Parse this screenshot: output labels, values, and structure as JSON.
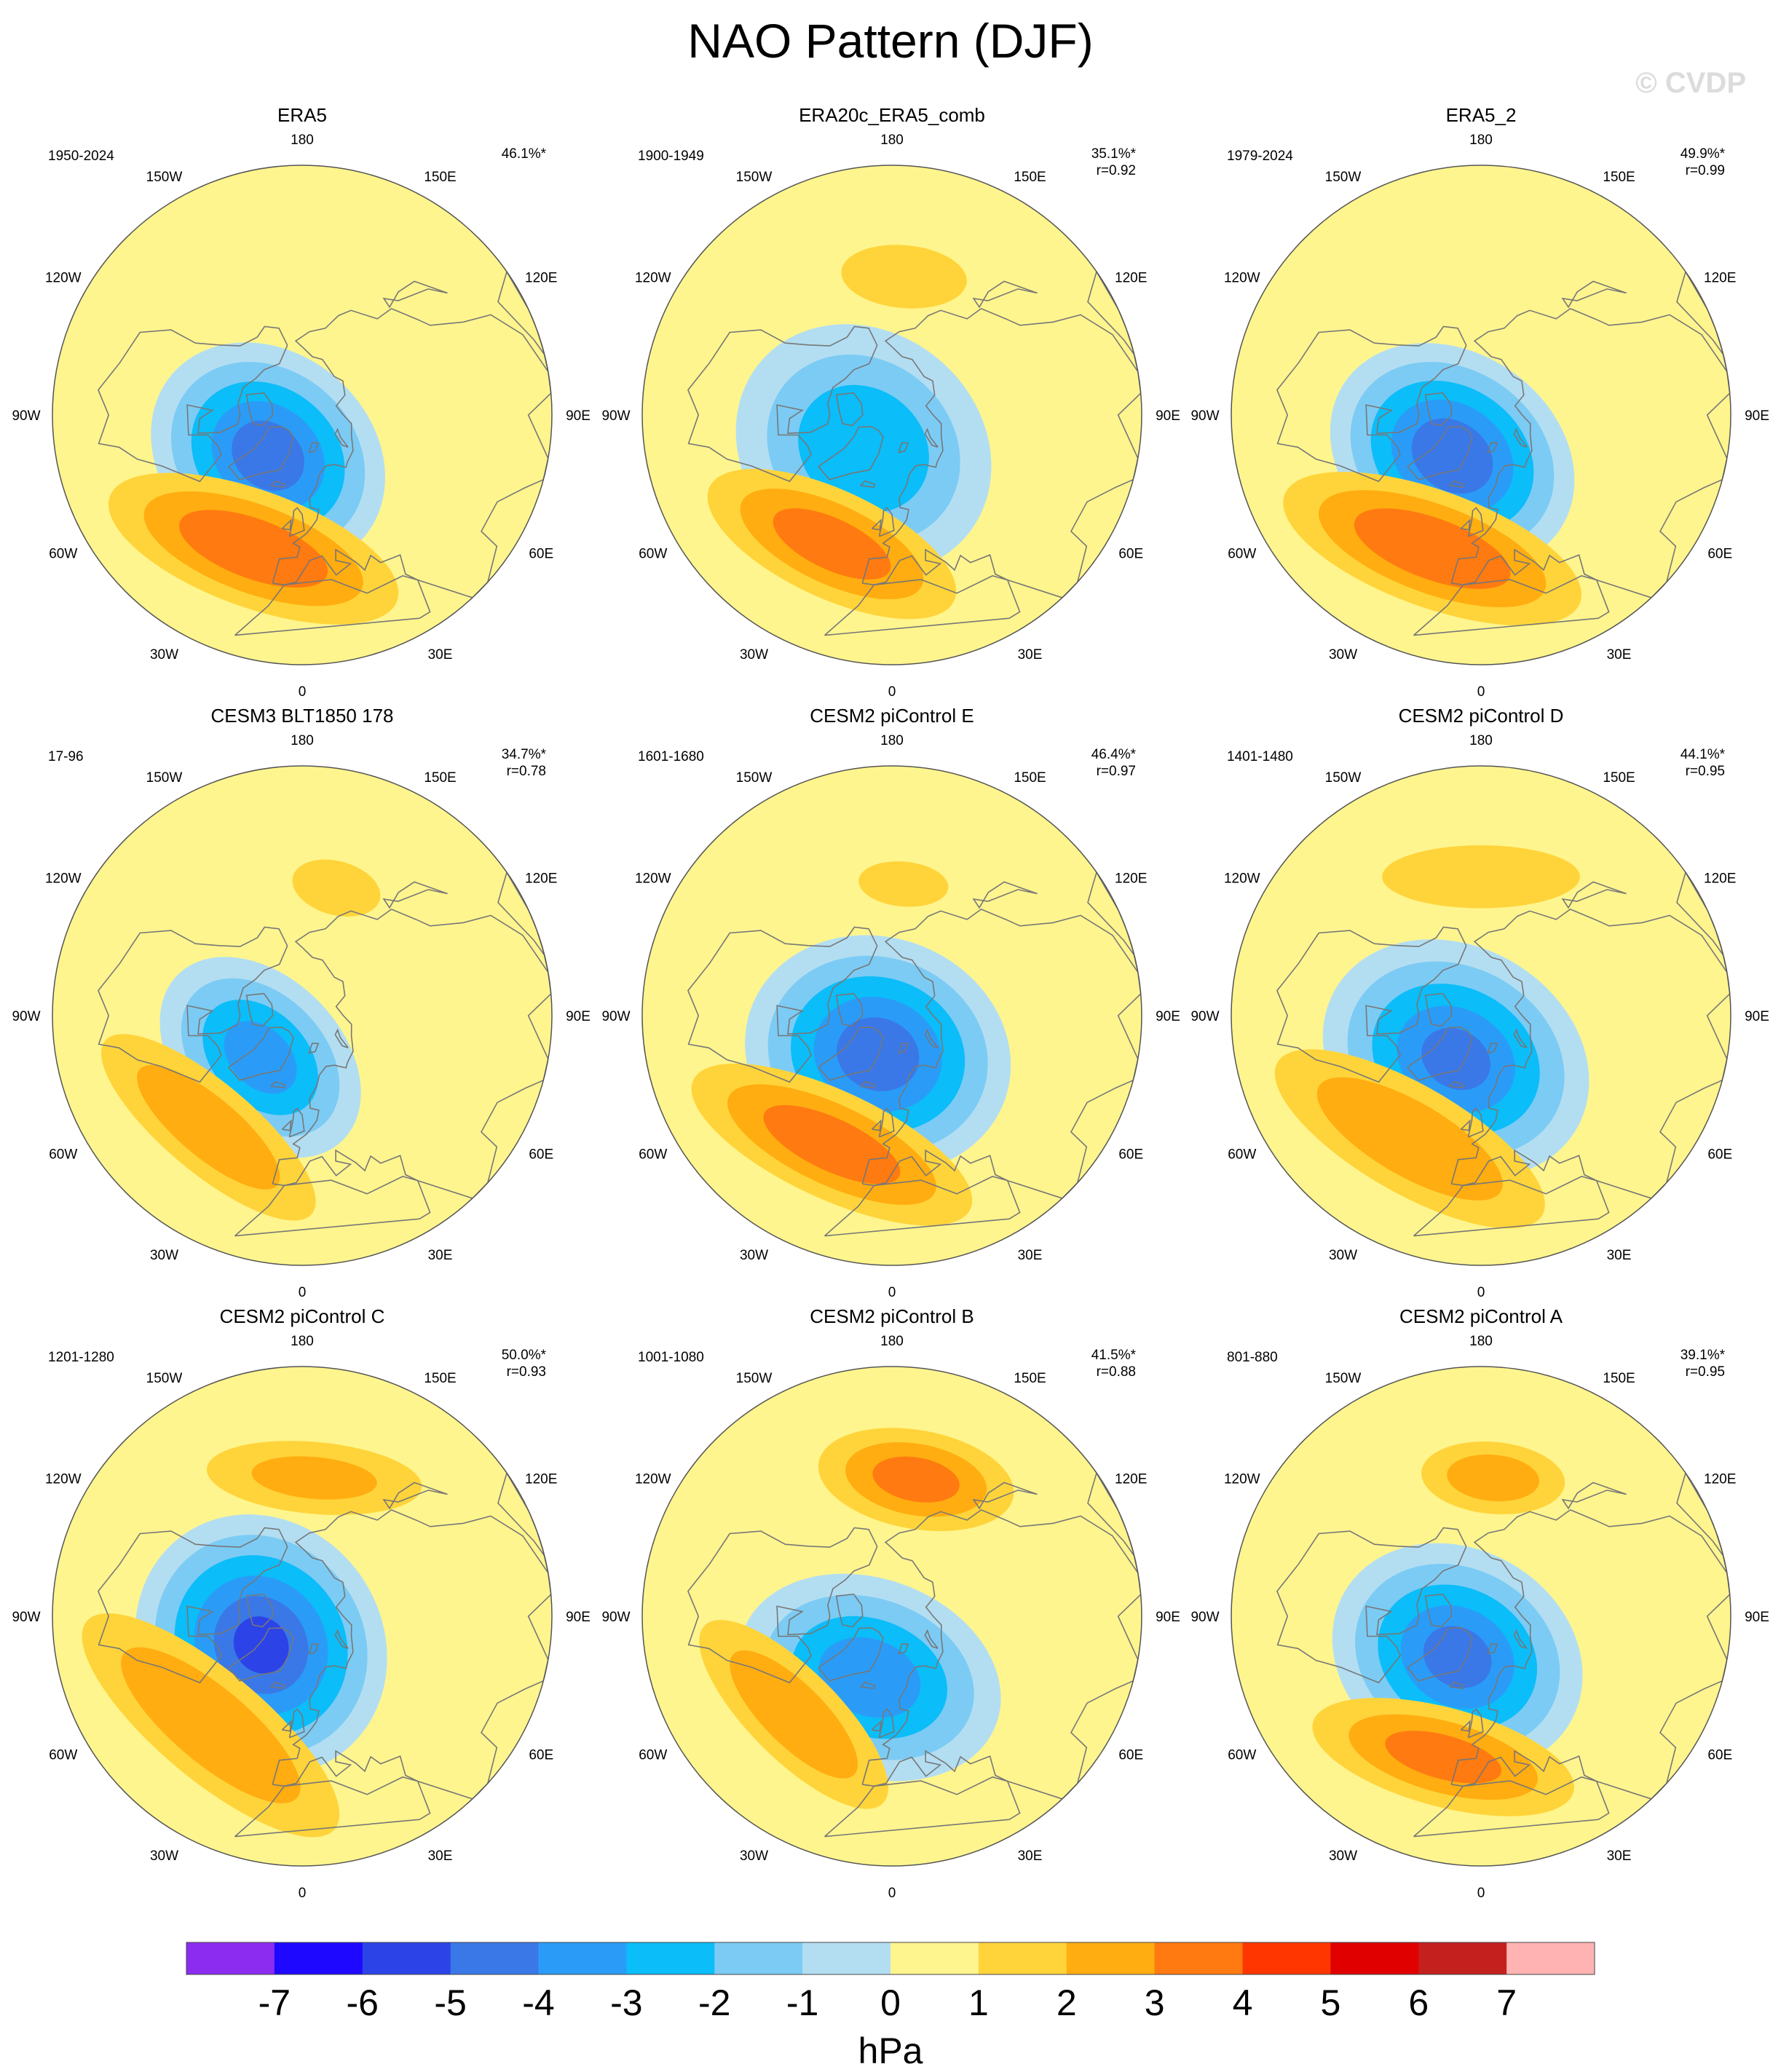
{
  "title": "NAO Pattern (DJF)",
  "watermark": "© CVDP",
  "colors": {
    "levels": [
      "#8c2cf0",
      "#1e08ff",
      "#2c43e8",
      "#3a78e8",
      "#2a9cf8",
      "#0bbdf9",
      "#7ccbf4",
      "#b3def2",
      "#fff58e",
      "#ffd43a",
      "#ffad10",
      "#ff7a10",
      "#ff3600",
      "#e10000",
      "#c4201e",
      "#ffb3b3"
    ],
    "coast": "#777777"
  },
  "chart_data": {
    "type": "polar_contour_map",
    "variable": "sea level pressure regression",
    "units": "hPa",
    "colorbar": {
      "ticks": [
        "-7",
        "-6",
        "-5",
        "-4",
        "-3",
        "-2",
        "-1",
        "0",
        "1",
        "2",
        "3",
        "4",
        "5",
        "6",
        "7"
      ],
      "range": [
        -8,
        8
      ],
      "interval": 1
    },
    "lon_labels": [
      "180",
      "150E",
      "120E",
      "90E",
      "60E",
      "30E",
      "0",
      "30W",
      "60W",
      "90W",
      "120W",
      "150W"
    ],
    "panels": [
      {
        "name": "ERA5",
        "years": "1950-2024",
        "pct": "46.1%*",
        "r": "",
        "centers": [
          {
            "lon": -40,
            "lat": 72,
            "v": -5.4,
            "rx": 0.28,
            "ry": 0.23
          },
          {
            "lon": -20,
            "lat": 44,
            "v": 3.7,
            "rx": 0.34,
            "ry": 0.13
          }
        ]
      },
      {
        "name": "ERA20c_ERA5_comb",
        "years": "1900-1949",
        "pct": "35.1%*",
        "r": "r=0.92",
        "centers": [
          {
            "lon": -40,
            "lat": 75,
            "v": -3.7,
            "rx": 0.3,
            "ry": 0.26
          },
          {
            "lon": -25,
            "lat": 44,
            "v": 3.4,
            "rx": 0.3,
            "ry": 0.12
          },
          {
            "lon": 175,
            "lat": 45,
            "v": 1.3,
            "rx": 0.14,
            "ry": 0.07
          }
        ]
      },
      {
        "name": "ERA5_2",
        "years": "1979-2024",
        "pct": "49.9%*",
        "r": "r=0.99",
        "centers": [
          {
            "lon": -35,
            "lat": 73,
            "v": -5.6,
            "rx": 0.29,
            "ry": 0.23
          },
          {
            "lon": -20,
            "lat": 44,
            "v": 3.8,
            "rx": 0.35,
            "ry": 0.13
          }
        ]
      },
      {
        "name": "CESM3 BLT1850 178",
        "years": "17-96",
        "pct": "34.7%*",
        "r": "r=0.78",
        "centers": [
          {
            "lon": -45,
            "lat": 70,
            "v": -4.3,
            "rx": 0.26,
            "ry": 0.18
          },
          {
            "lon": -40,
            "lat": 43,
            "v": 2.6,
            "rx": 0.3,
            "ry": 0.1
          },
          {
            "lon": 165,
            "lat": 47,
            "v": 1.2,
            "rx": 0.1,
            "ry": 0.06
          }
        ]
      },
      {
        "name": "CESM2 piControl E",
        "years": "1601-1680",
        "pct": "46.4%*",
        "r": "r=0.97",
        "centers": [
          {
            "lon": -20,
            "lat": 76,
            "v": -5.4,
            "rx": 0.3,
            "ry": 0.26
          },
          {
            "lon": -25,
            "lat": 44,
            "v": 3.5,
            "rx": 0.34,
            "ry": 0.12
          },
          {
            "lon": 175,
            "lat": 47,
            "v": 1.1,
            "rx": 0.1,
            "ry": 0.05
          }
        ]
      },
      {
        "name": "CESM2 piControl D",
        "years": "1401-1480",
        "pct": "44.1%*",
        "r": "r=0.95",
        "centers": [
          {
            "lon": -30,
            "lat": 73,
            "v": -5.0,
            "rx": 0.31,
            "ry": 0.25
          },
          {
            "lon": -30,
            "lat": 44,
            "v": 2.8,
            "rx": 0.34,
            "ry": 0.12
          },
          {
            "lon": 180,
            "lat": 45,
            "v": 1.6,
            "rx": 0.22,
            "ry": 0.07
          }
        ]
      },
      {
        "name": "CESM2 piControl C",
        "years": "1201-1280",
        "pct": "50.0%*",
        "r": "r=0.93",
        "centers": [
          {
            "lon": -55,
            "lat": 73,
            "v": -6.0,
            "rx": 0.3,
            "ry": 0.27
          },
          {
            "lon": -40,
            "lat": 44,
            "v": 2.9,
            "rx": 0.36,
            "ry": 0.12
          },
          {
            "lon": 175,
            "lat": 45,
            "v": 2.0,
            "rx": 0.24,
            "ry": 0.08
          }
        ]
      },
      {
        "name": "CESM2 piControl B",
        "years": "1001-1080",
        "pct": "41.5%*",
        "r": "r=0.88",
        "centers": [
          {
            "lon": -20,
            "lat": 68,
            "v": -4.5,
            "rx": 0.3,
            "ry": 0.22
          },
          {
            "lon": -45,
            "lat": 45,
            "v": 2.7,
            "rx": 0.28,
            "ry": 0.1
          },
          {
            "lon": 170,
            "lat": 45,
            "v": 3.2,
            "rx": 0.22,
            "ry": 0.11
          }
        ]
      },
      {
        "name": "CESM2 piControl A",
        "years": "801-880",
        "pct": "39.1%*",
        "r": "r=0.95",
        "centers": [
          {
            "lon": -30,
            "lat": 74,
            "v": -5.1,
            "rx": 0.29,
            "ry": 0.24
          },
          {
            "lon": -15,
            "lat": 43,
            "v": 3.2,
            "rx": 0.3,
            "ry": 0.11
          },
          {
            "lon": 175,
            "lat": 45,
            "v": 2.4,
            "rx": 0.16,
            "ry": 0.08
          }
        ]
      }
    ]
  }
}
